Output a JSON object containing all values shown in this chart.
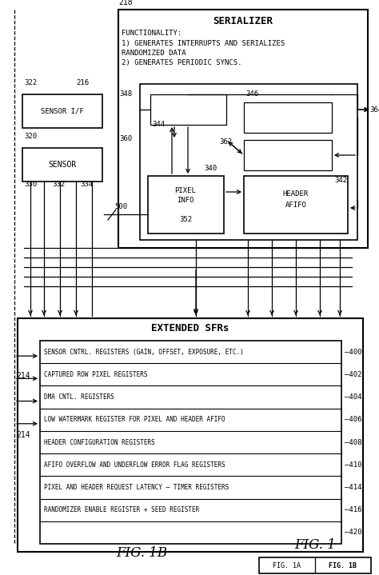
{
  "bg_color": "#ffffff",
  "line_color": "#000000",
  "fig_width": 4.74,
  "fig_height": 7.19,
  "dpi": 100,
  "serializer_title": "SERIALIZER",
  "serializer_func_text_line1": "FUNCTIONALITY:",
  "serializer_func_text_line2": "1) GENERATES INTERRUPTS AND SERIALIZES",
  "serializer_func_text_line3": "RANDOMIZED DATA",
  "serializer_func_text_line4": "2) GENERATES PERIODIC SYNCS.",
  "sfr_rows": [
    {
      "label": "SENSOR CNTRL. REGISTERS (GAIN, OFFSET, EXPOSURE, ETC.)",
      "num": "400"
    },
    {
      "label": "CAPTURED ROW PIXEL REGISTERS",
      "num": "402"
    },
    {
      "label": "DMA CNTL. REGISTERS",
      "num": "404"
    },
    {
      "label": "LOW WATERMARK REGISTER FOR PIXEL AND HEADER AFIFO",
      "num": "406"
    },
    {
      "label": "HEADER CONFIGURATION REGISTERS",
      "num": "408"
    },
    {
      "label": "AFIFO OVERFLOW AND UNDERFLOW ERROR FLAG REGISTERS",
      "num": "410"
    },
    {
      "label": "PIXEL AND HEADER REQUEST LATENCY – TIMER REGISTERS",
      "num": "414"
    },
    {
      "label": "RANDOMIZER ENABLE REGISTER + SEED REGISTER",
      "num": "416"
    },
    {
      "label": "",
      "num": "420"
    }
  ]
}
